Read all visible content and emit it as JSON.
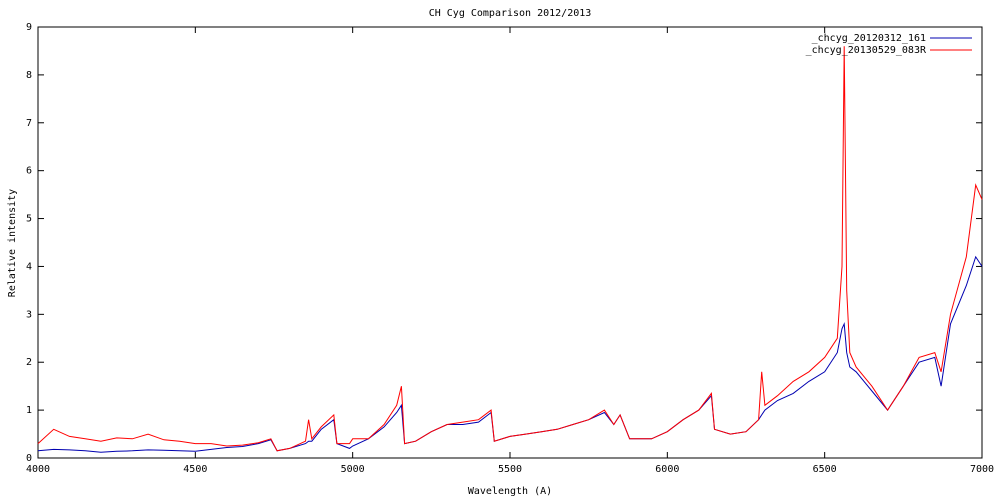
{
  "chart_data": {
    "type": "line",
    "title": "CH Cyg Comparison 2012/2013",
    "x_label": "Wavelength (A)",
    "y_label": "Relative intensity",
    "legend": "top-right",
    "x": [
      4000,
      4050,
      4100,
      4150,
      4200,
      4250,
      4300,
      4350,
      4400,
      4450,
      4500,
      4550,
      4600,
      4650,
      4700,
      4740,
      4760,
      4800,
      4850,
      4860,
      4870,
      4900,
      4940,
      4950,
      4990,
      5000,
      5050,
      5100,
      5140,
      5155,
      5165,
      5200,
      5250,
      5300,
      5350,
      5400,
      5440,
      5450,
      5500,
      5550,
      5600,
      5650,
      5700,
      5750,
      5800,
      5830,
      5850,
      5880,
      5950,
      6000,
      6050,
      6100,
      6140,
      6150,
      6200,
      6250,
      6290,
      6300,
      6310,
      6350,
      6400,
      6450,
      6500,
      6540,
      6555,
      6562,
      6570,
      6580,
      6600,
      6650,
      6700,
      6750,
      6800,
      6850,
      6870,
      6900,
      6950,
      6980,
      7000
    ],
    "series": [
      {
        "name": "_chcyg_20120312_161",
        "color": "#0000b0",
        "values": [
          0.15,
          0.18,
          0.17,
          0.15,
          0.12,
          0.14,
          0.15,
          0.17,
          0.16,
          0.15,
          0.14,
          0.18,
          0.22,
          0.24,
          0.3,
          0.38,
          0.15,
          0.2,
          0.3,
          0.35,
          0.35,
          0.6,
          0.8,
          0.3,
          0.2,
          0.25,
          0.4,
          0.65,
          0.95,
          1.1,
          0.3,
          0.35,
          0.55,
          0.7,
          0.7,
          0.75,
          0.95,
          0.35,
          0.45,
          0.5,
          0.55,
          0.6,
          0.7,
          0.8,
          0.95,
          0.7,
          0.9,
          0.4,
          0.4,
          0.55,
          0.8,
          1.0,
          1.3,
          0.6,
          0.5,
          0.55,
          0.8,
          0.9,
          1.0,
          1.2,
          1.35,
          1.6,
          1.8,
          2.2,
          2.7,
          2.8,
          2.2,
          1.9,
          1.8,
          1.4,
          1.0,
          1.5,
          2.0,
          2.1,
          1.5,
          2.8,
          3.6,
          4.2,
          4.0
        ]
      },
      {
        "name": "_chcyg_20130529_083R",
        "color": "#ff0000",
        "values": [
          0.3,
          0.6,
          0.45,
          0.4,
          0.35,
          0.42,
          0.4,
          0.5,
          0.38,
          0.35,
          0.3,
          0.3,
          0.25,
          0.27,
          0.32,
          0.4,
          0.15,
          0.2,
          0.35,
          0.8,
          0.4,
          0.65,
          0.9,
          0.3,
          0.3,
          0.4,
          0.4,
          0.7,
          1.1,
          1.5,
          0.3,
          0.35,
          0.55,
          0.7,
          0.75,
          0.8,
          1.0,
          0.35,
          0.45,
          0.5,
          0.55,
          0.6,
          0.7,
          0.8,
          1.0,
          0.7,
          0.9,
          0.4,
          0.4,
          0.55,
          0.8,
          1.0,
          1.35,
          0.6,
          0.5,
          0.55,
          0.8,
          1.8,
          1.1,
          1.3,
          1.6,
          1.8,
          2.1,
          2.5,
          4.0,
          8.6,
          3.5,
          2.2,
          1.9,
          1.5,
          1.0,
          1.5,
          2.1,
          2.2,
          1.8,
          3.0,
          4.2,
          5.7,
          5.4
        ]
      }
    ],
    "xlim": [
      4000,
      7000
    ],
    "xticks": [
      4000,
      4500,
      5000,
      5500,
      6000,
      6500,
      7000
    ],
    "ylim": [
      0,
      9
    ],
    "yticks": [
      0,
      1,
      2,
      3,
      4,
      5,
      6,
      7,
      8,
      9
    ]
  }
}
